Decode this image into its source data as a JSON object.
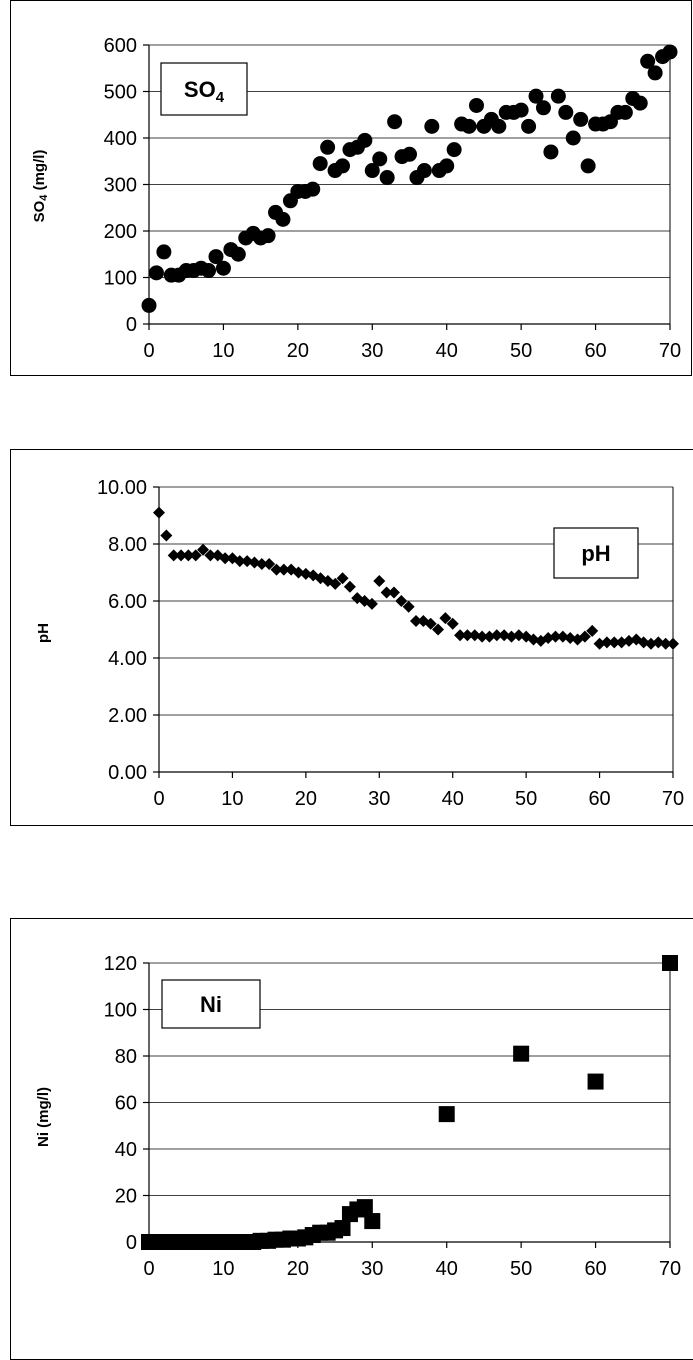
{
  "chart_data": [
    {
      "type": "scatter",
      "title": "",
      "label_box": {
        "text": "SO",
        "sub": "4"
      },
      "xlabel": "",
      "ylabel": {
        "text": "SO",
        "sub": "4",
        "rest": " (mg/l)"
      },
      "xlim": [
        0,
        70
      ],
      "ylim": [
        0,
        600
      ],
      "xticks": [
        0,
        10,
        20,
        30,
        40,
        50,
        60,
        70
      ],
      "yticks": [
        0,
        100,
        200,
        300,
        400,
        500,
        600
      ],
      "ytick_decimals": 0,
      "grid": true,
      "marker": "circle",
      "series": [
        {
          "x": [
            0,
            1,
            2,
            3,
            4,
            5,
            6,
            7,
            8,
            9,
            10,
            11,
            12,
            13,
            14,
            15,
            16,
            17,
            18,
            19,
            20,
            21,
            22,
            23,
            24,
            25,
            26,
            27,
            28,
            29,
            30,
            31,
            32,
            33,
            34,
            35,
            36,
            37,
            38,
            39,
            40,
            41,
            42,
            43,
            44,
            45,
            46,
            47,
            48,
            49,
            50,
            51,
            52,
            53,
            54,
            55,
            56,
            57,
            58,
            59,
            60,
            61,
            62,
            63,
            64,
            65,
            66,
            67,
            68,
            69,
            70
          ],
          "y": [
            40,
            110,
            155,
            105,
            105,
            115,
            115,
            120,
            115,
            145,
            120,
            160,
            150,
            185,
            195,
            185,
            190,
            240,
            225,
            265,
            285,
            285,
            290,
            345,
            380,
            330,
            340,
            375,
            380,
            395,
            330,
            355,
            315,
            435,
            360,
            365,
            315,
            330,
            425,
            330,
            340,
            375,
            430,
            425,
            470,
            425,
            440,
            425,
            455,
            455,
            460,
            425,
            490,
            465,
            370,
            490,
            455,
            400,
            440,
            340,
            430,
            430,
            435,
            455,
            455,
            485,
            475,
            565,
            540,
            575,
            585
          ]
        }
      ]
    },
    {
      "type": "scatter",
      "title": "",
      "label_box": {
        "text": "pH",
        "sub": ""
      },
      "xlabel": "",
      "ylabel": {
        "text": "pH",
        "sub": "",
        "rest": ""
      },
      "xlim": [
        0,
        70
      ],
      "ylim": [
        0,
        10
      ],
      "xticks": [
        0,
        10,
        20,
        30,
        40,
        50,
        60,
        70
      ],
      "yticks": [
        0,
        2,
        4,
        6,
        8,
        10
      ],
      "ytick_decimals": 2,
      "grid": true,
      "marker": "diamond",
      "series": [
        {
          "x": [
            0,
            1,
            2,
            3,
            4,
            5,
            6,
            7,
            8,
            9,
            10,
            11,
            12,
            13,
            14,
            15,
            16,
            17,
            18,
            19,
            20,
            21,
            22,
            23,
            24,
            25,
            26,
            27,
            28,
            29,
            30,
            31,
            32,
            33,
            34,
            35,
            36,
            37,
            38,
            39,
            40,
            41,
            42,
            43,
            44,
            45,
            46,
            47,
            48,
            49,
            50,
            51,
            52,
            53,
            54,
            55,
            56,
            57,
            58,
            59,
            60,
            61,
            62,
            63,
            64,
            65,
            66,
            67,
            68,
            69,
            70
          ],
          "y": [
            9.1,
            8.3,
            7.6,
            7.6,
            7.6,
            7.6,
            7.8,
            7.6,
            7.6,
            7.5,
            7.5,
            7.4,
            7.4,
            7.35,
            7.3,
            7.3,
            7.1,
            7.1,
            7.1,
            7.0,
            6.95,
            6.9,
            6.8,
            6.7,
            6.6,
            6.8,
            6.5,
            6.1,
            6.0,
            5.9,
            6.7,
            6.3,
            6.3,
            6.0,
            5.8,
            5.3,
            5.3,
            5.2,
            5.0,
            5.4,
            5.2,
            4.8,
            4.8,
            4.8,
            4.75,
            4.75,
            4.8,
            4.8,
            4.75,
            4.8,
            4.75,
            4.65,
            4.6,
            4.7,
            4.75,
            4.75,
            4.7,
            4.65,
            4.75,
            4.95,
            4.5,
            4.55,
            4.55,
            4.55,
            4.6,
            4.65,
            4.55,
            4.5,
            4.55,
            4.5,
            4.5
          ]
        }
      ]
    },
    {
      "type": "scatter",
      "title": "",
      "label_box": {
        "text": "Ni",
        "sub": ""
      },
      "xlabel": "",
      "ylabel": {
        "text": "Ni (mg/l)",
        "sub": "",
        "rest": ""
      },
      "xlim": [
        0,
        70
      ],
      "ylim": [
        0,
        120
      ],
      "xticks": [
        0,
        10,
        20,
        30,
        40,
        50,
        60,
        70
      ],
      "yticks": [
        0,
        20,
        40,
        60,
        80,
        100,
        120
      ],
      "ytick_decimals": 0,
      "grid": true,
      "marker": "square",
      "series": [
        {
          "x": [
            0,
            1,
            2,
            3,
            4,
            5,
            6,
            7,
            8,
            9,
            10,
            11,
            12,
            13,
            14,
            15,
            16,
            17,
            18,
            19,
            20,
            21,
            22,
            23,
            24,
            25,
            26,
            27,
            28,
            29,
            30,
            40,
            50,
            60,
            70
          ],
          "y": [
            0,
            0,
            0,
            0,
            0,
            0,
            0,
            0,
            0,
            0,
            0,
            0,
            0,
            0,
            0,
            0.5,
            0.5,
            1,
            1,
            1.5,
            1.5,
            2,
            3,
            4,
            4,
            5,
            6,
            12,
            14,
            15,
            9,
            55,
            81,
            69,
            120
          ]
        }
      ]
    }
  ]
}
